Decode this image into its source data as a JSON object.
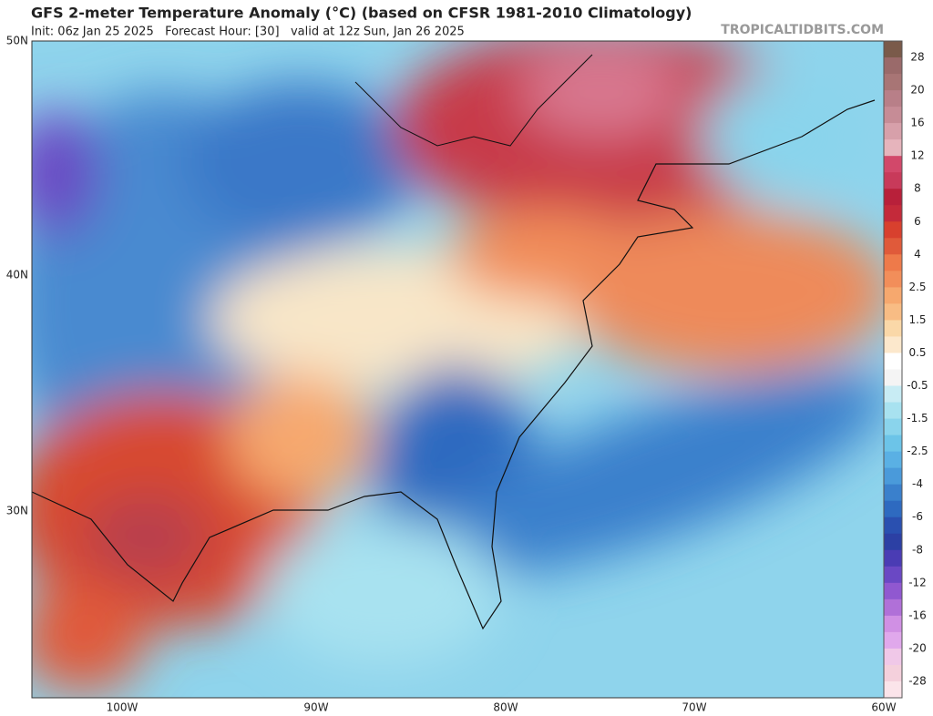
{
  "header": {
    "title": "GFS 2-meter Temperature Anomaly (°C) (based on CFSR 1981-2010 Climatology)",
    "subtitle": "Init: 06z Jan 25 2025   Forecast Hour: [30]   valid at 12z Sun, Jan 26 2025",
    "site": "TROPICALTIDBITS.COM"
  },
  "map": {
    "lat_labels": [
      "50N",
      "40N",
      "30N"
    ],
    "lon_labels": [
      "100W",
      "90W",
      "80W",
      "70W",
      "60W"
    ]
  },
  "colorbar": {
    "labels": [
      "28",
      "20",
      "16",
      "12",
      "8",
      "6",
      "4",
      "2.5",
      "1.5",
      "0.5",
      "-0.5",
      "-1.5",
      "-2.5",
      "-4",
      "-6",
      "-8",
      "-12",
      "-16",
      "-20",
      "-28"
    ],
    "colors": [
      "#7a5a4a",
      "#9a6a6a",
      "#a87575",
      "#b87f88",
      "#c68c96",
      "#d7a0aa",
      "#e6b4bc",
      "#d2486a",
      "#c83a5a",
      "#b8203a",
      "#c42a3a",
      "#d8402e",
      "#e05a3a",
      "#ee7a4a",
      "#f28e5a",
      "#f6a86e",
      "#f8bc84",
      "#fad8a8",
      "#fce8cc",
      "#ffffff",
      "#f4f4f4",
      "#c8ecf4",
      "#a8e2f0",
      "#8ad4ec",
      "#6cc4e8",
      "#5ab0e4",
      "#4a9ada",
      "#3a80cc",
      "#2e6ac0",
      "#2a50b0",
      "#2c40a4",
      "#4a3cb4",
      "#6a48c4",
      "#9058d0",
      "#b070d8",
      "#d090e4",
      "#e0a8ec",
      "#f0c8e8",
      "#f4d0dc",
      "#fbe4ea"
    ]
  }
}
